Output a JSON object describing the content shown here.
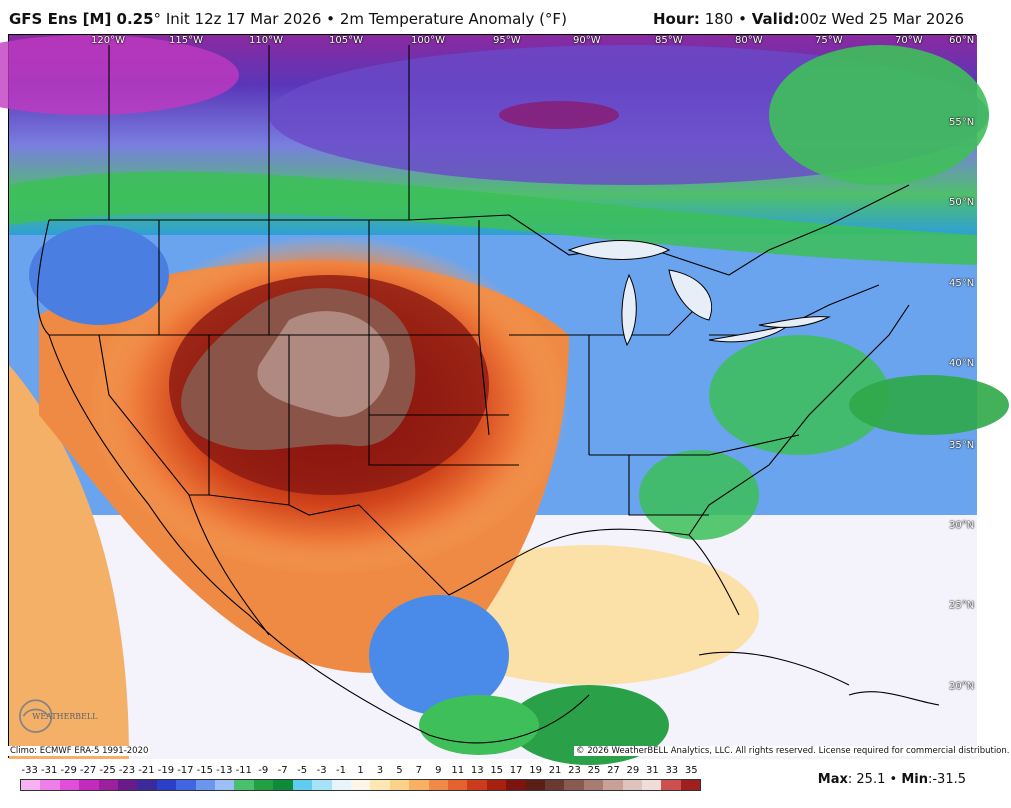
{
  "header": {
    "model": "GFS Ens [M] 0.25",
    "degree_symbol": "°",
    "init": "Init 12z 17 Mar 2026",
    "bullet": "•",
    "product": "2m Temperature Anomaly (°F)",
    "hour_label": "Hour:",
    "hour_value": "180",
    "valid_label": "Valid:",
    "valid_value": "00z Wed 25 Mar 2026"
  },
  "map": {
    "longitudes": [
      "120°W",
      "115°W",
      "110°W",
      "105°W",
      "100°W",
      "95°W",
      "90°W",
      "85°W",
      "80°W",
      "75°W",
      "70°W",
      "60°N"
    ],
    "latitudes": [
      "55°N",
      "50°N",
      "45°N",
      "40°N",
      "35°N",
      "30°N",
      "25°N",
      "20°N"
    ]
  },
  "footer": {
    "climo": "Climo: ECMWF ERA-5 1991-2020",
    "copyright": "© 2026 WeatherBELL Analytics, LLC. All rights reserved. License required for commercial distribution.",
    "logo_text": "WEATHERBELL"
  },
  "legend": {
    "ticks": [
      "-33",
      "-31",
      "-29",
      "-27",
      "-25",
      "-23",
      "-21",
      "-19",
      "-17",
      "-15",
      "-13",
      "-11",
      "-9",
      "-7",
      "-5",
      "-3",
      "-1",
      "1",
      "3",
      "5",
      "7",
      "9",
      "11",
      "13",
      "15",
      "17",
      "19",
      "21",
      "23",
      "25",
      "27",
      "29",
      "31",
      "33",
      "35"
    ],
    "colors": [
      "#f6b3f2",
      "#ee7fe8",
      "#e04fd8",
      "#c22bbd",
      "#9c1f9c",
      "#6a1a8a",
      "#3c2a9c",
      "#2a40c8",
      "#3f66e0",
      "#6a96f0",
      "#9cc0f6",
      "#48c070",
      "#20a040",
      "#0f8a3a",
      "#5fcdf0",
      "#a6e2f8",
      "#e8f4fb",
      "#fbf6e8",
      "#fde8b4",
      "#fcd28a",
      "#f8b064",
      "#f08a46",
      "#e4622e",
      "#cc3c1c",
      "#a82010",
      "#7e1410",
      "#5a1e16",
      "#6a3a32",
      "#8a5a50",
      "#a87c72",
      "#c8a098",
      "#e0c2bc",
      "#f0dcd8",
      "#cc5050",
      "#a02020"
    ]
  },
  "stats": {
    "max_label": "Max",
    "max_value": "25.1",
    "min_label": "Min",
    "min_value": "-31.5"
  }
}
